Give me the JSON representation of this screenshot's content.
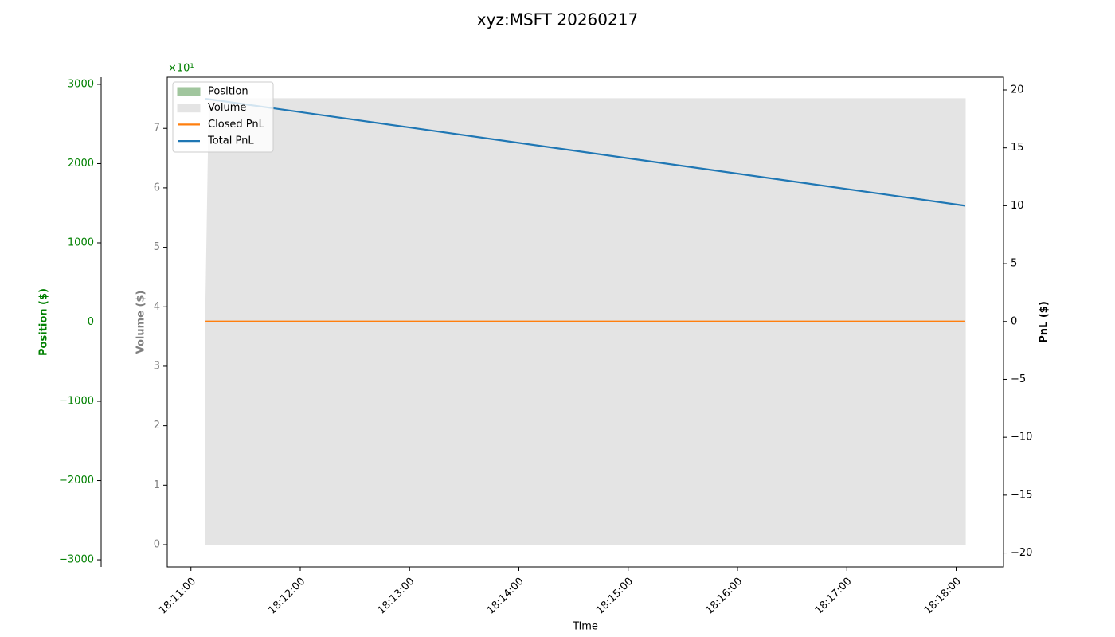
{
  "chart_data": {
    "type": "area-line",
    "title": "xyz:MSFT 20260217",
    "x_label": "Time",
    "x": [
      "18:11:08",
      "18:11:10",
      "18:18:05"
    ],
    "xlim": [
      "18:10:47",
      "18:18:26"
    ],
    "xticks": [
      "18:11:00",
      "18:12:00",
      "18:13:00",
      "18:14:00",
      "18:15:00",
      "18:16:00",
      "18:17:00",
      "18:18:00"
    ],
    "ylabel": "Position ($)",
    "ylim": [
      -3090,
      3090
    ],
    "yticks": [
      {
        "value": -3000,
        "label": "−3000"
      },
      {
        "value": -2000,
        "label": "−2000"
      },
      {
        "value": -1000,
        "label": "−1000"
      },
      0,
      1000,
      2000,
      3000
    ],
    "y3label": "Volume ($)",
    "y3lim": [
      -0.375,
      7.86
    ],
    "y3ticks": [
      0,
      1,
      2,
      3,
      4,
      5,
      6,
      7
    ],
    "y3_offset_label": "×10¹",
    "y2label": "PnL ($)",
    "y2lim": [
      -21.2,
      21.1
    ],
    "y2ticks": [
      {
        "value": -20,
        "label": "−20"
      },
      {
        "value": -15,
        "label": "−15"
      },
      {
        "value": -10,
        "label": "−10"
      },
      {
        "value": -5,
        "label": "−5"
      },
      0,
      5,
      10,
      15,
      20
    ],
    "series": [
      {
        "name": "Position",
        "color": "#a1c69e",
        "kind": "area",
        "axis": "y",
        "values": [
          -2814,
          -2814,
          -2814
        ]
      },
      {
        "name": "Volume",
        "color": "#e4e4e4",
        "kind": "area",
        "axis": "y3",
        "values": [
          3.75,
          7.5,
          7.5
        ]
      },
      {
        "name": "Closed PnL",
        "color": "#ff7f0e",
        "kind": "line",
        "axis": "y2",
        "values": [
          0,
          0,
          0
        ]
      },
      {
        "name": "Total PnL",
        "color": "#1f77b4",
        "kind": "line",
        "axis": "y2",
        "values": [
          19.24,
          19.2,
          10.0
        ]
      }
    ],
    "legend": "upper left"
  }
}
